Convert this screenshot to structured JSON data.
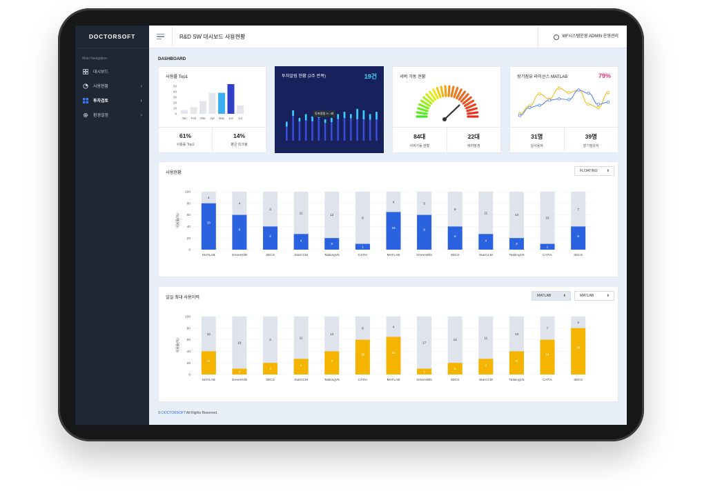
{
  "app": {
    "logo": "DOCTORSOFT",
    "title": "R&D SW 대시보드 사용현황",
    "user": "WF시스템운영 ADMIN 운영관리"
  },
  "sidebar": {
    "caption": "Main Navigation",
    "items": [
      {
        "label": "대시보드",
        "icon": "grid-icon",
        "active": false,
        "chevron": false
      },
      {
        "label": "사용현황",
        "icon": "chart-icon",
        "active": false,
        "chevron": true
      },
      {
        "label": "투자검토",
        "icon": "dashboard-icon",
        "active": true,
        "chevron": true
      },
      {
        "label": "환경설정",
        "icon": "gear-icon",
        "active": false,
        "chevron": true
      }
    ]
  },
  "dashboard_label": "DASHBOARD",
  "cards": {
    "usage_top": {
      "title": "사용률 Top1",
      "stats": [
        {
          "value": "61%",
          "label": "사용률 Top1"
        },
        {
          "value": "14%",
          "label": "평균 피크율"
        }
      ]
    },
    "invest": {
      "title": "투자알림 현황 (2주 반복)",
      "badge": "19건",
      "tooltip": "투자알림 A : 40"
    },
    "server": {
      "title": "서버 가동 현황",
      "stats": [
        {
          "value": "84대",
          "label": "서버가동 현황"
        },
        {
          "value": "22대",
          "label": "에러발생"
        }
      ]
    },
    "license": {
      "title": "장기점유 라이선스 MATLAB",
      "badge": "79%",
      "stats": [
        {
          "value": "31명",
          "label": "실사용자"
        },
        {
          "value": "39명",
          "label": "장기점유자"
        }
      ]
    }
  },
  "usage_panel": {
    "title": "사용현황",
    "select": "FLOATING"
  },
  "daily_panel": {
    "title": "일일 최대 사용이력",
    "select1": "MATLAB",
    "select2": "MATLAB"
  },
  "footer": {
    "prefix": "© ",
    "brand": "DOCTORSOFT",
    "suffix": " All Rights Reserved."
  },
  "colors": {
    "sidebar": "#1e2733",
    "blue": "#2b62e0",
    "yellow": "#f4b400",
    "track": "#dfe4ec",
    "invest_bg": "#17215c",
    "pink": "#e8336f"
  },
  "chart_data": [
    {
      "type": "bar",
      "title": "사용률 Top1",
      "categories": [
        "Jan",
        "Feb",
        "Mar",
        "Apr",
        "May",
        "Jun",
        "Jul"
      ],
      "values": [
        7,
        12,
        23,
        38,
        38,
        55,
        15
      ],
      "ylim": [
        0,
        50
      ],
      "yticks": [
        0,
        10,
        20,
        30,
        40,
        50
      ]
    },
    {
      "type": "bar",
      "title": "사용현황",
      "ylabel": "사용률(%)",
      "ylim": [
        0,
        100
      ],
      "yticks": [
        0,
        20,
        40,
        60,
        80,
        100
      ],
      "categories": [
        "MATLAB",
        "GreenHills",
        "3DCS",
        "StarCCM",
        "TaskingV5",
        "CATIA",
        "MATLAB",
        "GreenHills",
        "3DCS",
        "StarCCM",
        "TaskingV5",
        "CATIA",
        "3DCS"
      ],
      "values": [
        80,
        60,
        40,
        27,
        20,
        10,
        65,
        60,
        40,
        27,
        20,
        10,
        40
      ],
      "bar_labels": [
        16,
        8,
        2,
        4,
        3,
        1,
        16,
        9,
        5,
        4,
        3,
        1,
        6
      ],
      "top_labels": [
        4,
        4,
        3,
        11,
        12,
        9,
        4,
        5,
        9,
        11,
        13,
        15,
        7
      ]
    },
    {
      "type": "bar",
      "title": "일일 최대 사용이력",
      "ylabel": "사용률(%)",
      "ylim": [
        0,
        100
      ],
      "yticks": [
        0,
        20,
        40,
        60,
        80,
        100
      ],
      "categories": [
        "MATLAB",
        "GreenHills",
        "3DCS",
        "StarCCM",
        "TaskingV5",
        "CATIA",
        "MATLAB",
        "GreenHills",
        "3DCS",
        "StarCCM",
        "TaskingV5",
        "CATIA",
        "3DCS"
      ],
      "values": [
        40,
        10,
        20,
        27,
        40,
        60,
        65,
        10,
        20,
        27,
        40,
        60,
        80
      ],
      "bar_labels": [
        11,
        2,
        4,
        4,
        3,
        15,
        15,
        1,
        2,
        4,
        8,
        14,
        18
      ],
      "top_labels": [
        13,
        19,
        3,
        11,
        12,
        9,
        4,
        17,
        12,
        11,
        13,
        7,
        3
      ]
    },
    {
      "type": "line",
      "title": "장기점유 라이선스 MATLAB",
      "x": [
        1,
        2,
        3,
        4,
        5,
        6,
        7,
        8,
        9,
        10
      ],
      "series": [
        {
          "values": [
            15,
            40,
            78,
            62,
            96,
            82,
            90,
            45,
            35,
            82
          ]
        },
        {
          "values": [
            10,
            35,
            42,
            58,
            62,
            60,
            90,
            80,
            45,
            52
          ]
        }
      ],
      "ylim": [
        0,
        100
      ]
    },
    {
      "type": "bar",
      "title": "투자알림 현황 (2주 반복)",
      "x": [
        1,
        2,
        3,
        4,
        5,
        6,
        7,
        8,
        9,
        10,
        11,
        12,
        13,
        14,
        15
      ],
      "values": [
        25,
        40,
        30,
        35,
        32,
        40,
        28,
        30,
        35,
        38,
        35,
        42,
        40,
        35,
        38
      ],
      "highlight": [
        7,
        8,
        5,
        9,
        7,
        11,
        5,
        6,
        7,
        9,
        6,
        15,
        13,
        8,
        11
      ],
      "ylim": [
        0,
        50
      ]
    }
  ]
}
